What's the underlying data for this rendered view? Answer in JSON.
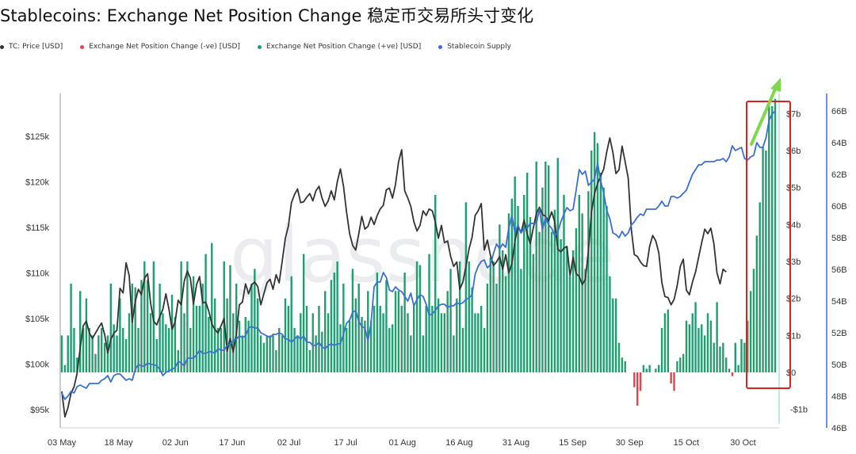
{
  "title": "Stablecoins: Exchange Net Position Change 稳定币交易所头寸变化",
  "legend": [
    {
      "label": "TC: Price [USD]",
      "color": "#333333"
    },
    {
      "label": "Exchange Net Position Change (-ve) [USD]",
      "color": "#e8414a"
    },
    {
      "label": "Exchange Net Position Change (+ve) [USD]",
      "color": "#1f9e6e"
    },
    {
      "label": "Stablecoin Supply",
      "color": "#3a6fd8"
    }
  ],
  "watermark": "glassnode",
  "colors": {
    "price": "#333333",
    "neg": "#e8414a",
    "pos": "#1f9e6e",
    "supply": "#3a6fd8",
    "highlight": "#e02020",
    "arrow": "#7cd94a"
  },
  "chart_data": {
    "type": "bar",
    "x_labels": [
      "03 May",
      "18 May",
      "02 Jun",
      "17 Jun",
      "02 Jul",
      "17 Jul",
      "01 Aug",
      "16 Aug",
      "31 Aug",
      "15 Sep",
      "30 Sep",
      "15 Oct",
      "30 Oct"
    ],
    "left_axis": {
      "ticks": [
        "$95k",
        "$100k",
        "$105k",
        "$110k",
        "$115k",
        "$120k",
        "$125k"
      ],
      "range": [
        93000,
        129500
      ]
    },
    "right_axis_1": {
      "ticks": [
        "-$1b",
        "$0",
        "$1b",
        "$2b",
        "$3b",
        "$4b",
        "$5b",
        "$6b",
        "$7b"
      ],
      "range": [
        -1.5,
        7.5
      ]
    },
    "right_axis_2": {
      "ticks": [
        "46B",
        "48B",
        "50B",
        "52B",
        "54B",
        "56B",
        "58B",
        "60B",
        "62B",
        "64B",
        "66B"
      ],
      "range": [
        46,
        67
      ]
    },
    "net_position_change_bn": [
      1.0,
      0.2,
      1.0,
      2.4,
      1.2,
      0.4,
      2.2,
      1.2,
      2.0,
      1.2,
      1.0,
      0.5,
      1.0,
      1.2,
      0.8,
      1.0,
      2.4,
      1.3,
      1.0,
      2.0,
      1.2,
      0.9,
      1.6,
      2.4,
      2.3,
      1.2,
      2.5,
      3.0,
      2.5,
      1.6,
      3.0,
      0.9,
      2.4,
      1.6,
      1.3,
      1.2,
      2.1,
      1.5,
      0.6,
      3.0,
      1.6,
      3.0,
      1.2,
      2.6,
      1.8,
      1.8,
      2.4,
      3.2,
      1.5,
      3.5,
      2.0,
      1.2,
      1.2,
      3.0,
      2.0,
      2.9,
      1.6,
      2.4,
      1.4,
      1.0,
      1.5,
      1.4,
      2.4,
      2.8,
      2.0,
      1.0,
      0.8,
      1.0,
      1.0,
      1.0,
      0.6,
      1.2,
      1.0,
      2.0,
      1.8,
      2.6,
      1.2,
      1.0,
      1.6,
      3.2,
      1.8,
      0.6,
      1.6,
      1.0,
      1.8,
      1.1,
      2.2,
      1.6,
      2.5,
      2.7,
      3.0,
      1.3,
      2.4,
      1.2,
      1.4,
      2.8,
      2.0,
      2.4,
      1.5,
      1.4,
      2.2,
      1.4,
      1.8,
      2.7,
      1.8,
      1.6,
      2.5,
      1.2,
      1.3,
      2.2,
      2.2,
      1.8,
      2.7,
      1.6,
      1.0,
      1.8,
      3.0,
      2.9,
      1.0,
      1.8,
      3.2,
      1.8,
      4.8,
      2.0,
      1.6,
      1.6,
      2.2,
      2.8,
      1.0,
      2.0,
      3.0,
      1.2,
      4.6,
      3.0,
      2.3,
      1.6,
      1.6,
      1.8,
      1.2,
      2.4,
      3.1,
      3.0,
      2.4,
      4.0,
      3.3,
      2.6,
      4.3,
      4.7,
      5.3,
      4.5,
      2.8,
      4.8,
      5.4,
      4.2,
      3.2,
      5.7,
      3.8,
      5.0,
      5.7,
      5.6,
      3.8,
      4.4,
      5.8,
      3.6,
      4.8,
      3.4,
      2.6,
      3.3,
      3.9,
      4.8,
      4.3,
      2.8,
      4.9,
      6.0,
      6.5,
      6.2,
      5.4,
      5.0,
      4.5,
      2.6,
      2.0,
      2.0,
      0.8,
      0.4,
      0.3,
      0.0,
      0.0,
      -0.4,
      -0.9,
      -0.5,
      0.2,
      0.1,
      0.2,
      0.0,
      0.1,
      0.2,
      1.2,
      1.6,
      1.7,
      -0.3,
      -0.5,
      0.3,
      0.4,
      0.5,
      1.4,
      1.3,
      1.6,
      1.9,
      1.2,
      1.3,
      1.0,
      1.6,
      1.4,
      0.8,
      1.9,
      0.7,
      0.8,
      0.4,
      0.1,
      -0.1,
      0.8,
      0.2,
      0.9,
      0.8,
      1.4,
      2.2,
      2.8,
      3.7,
      4.6,
      6.1,
      6.0,
      7.2,
      7.2,
      7.4
    ],
    "btc_price_usd": [
      97000,
      94200,
      95200,
      96800,
      97500,
      99000,
      101800,
      104200,
      104700,
      103400,
      102800,
      103400,
      104000,
      104500,
      103200,
      101200,
      102700,
      103400,
      103700,
      108300,
      107800,
      111100,
      109700,
      104600,
      106900,
      108200,
      107600,
      109400,
      109900,
      106700,
      104700,
      104300,
      105200,
      106000,
      107700,
      106000,
      103800,
      104600,
      107000,
      106500,
      109100,
      110200,
      109400,
      106600,
      108700,
      109600,
      106700,
      106800,
      105800,
      104400,
      103800,
      103400,
      104200,
      105000,
      101400,
      102800,
      101300,
      103300,
      106500,
      106800,
      108800,
      107700,
      108700,
      109000,
      108500,
      106500,
      107700,
      108900,
      109300,
      108200,
      109800,
      108900,
      111300,
      113800,
      115100,
      117700,
      118600,
      119200,
      117700,
      117800,
      118300,
      118700,
      117900,
      119000,
      119500,
      118200,
      117300,
      117900,
      119000,
      118000,
      120000,
      121400,
      119500,
      116700,
      114300,
      113000,
      112500,
      114300,
      116200,
      114800,
      115100,
      116100,
      115300,
      116300,
      117000,
      117400,
      119100,
      119300,
      118200,
      119700,
      122200,
      123500,
      119000,
      118200,
      117300,
      115600,
      114600,
      115200,
      116800,
      116300,
      117000,
      116800,
      115600,
      113800,
      115200,
      113300,
      113500,
      111800,
      110700,
      111200,
      108200,
      109000,
      110700,
      112600,
      113900,
      116300,
      116800,
      117600,
      112500,
      113600,
      111900,
      110800,
      111200,
      111800,
      110400,
      112000,
      110000,
      111000,
      113500,
      115100,
      114400,
      115800,
      114300,
      113200,
      114900,
      116500,
      117200,
      116400,
      116200,
      115700,
      116700,
      115600,
      112600,
      112300,
      112700,
      112900,
      109700,
      111700,
      109900,
      109600,
      108700,
      109300,
      112400,
      116600,
      118700,
      119800,
      120600,
      121400,
      123300,
      124800,
      123200,
      120900,
      121300,
      123900,
      122200,
      120400,
      114800,
      112000,
      111800,
      111200,
      110800,
      110700,
      112900,
      114100,
      113500,
      112200,
      108900,
      107400,
      107300,
      106500,
      107100,
      108600,
      110700,
      111500,
      108100,
      107600,
      109000,
      110100,
      111700,
      113300,
      114800,
      114300,
      114900,
      113200,
      110000,
      108800,
      110400,
      110100
    ],
    "stablecoin_supply_bn": [
      48.2,
      47.8,
      48.0,
      48.3,
      48.2,
      48.6,
      48.7,
      48.6,
      48.5,
      48.8,
      48.8,
      48.8,
      48.8,
      49.0,
      49.1,
      49.3,
      48.9,
      49.3,
      49.4,
      49.4,
      49.2,
      49.0,
      49.1,
      49.0,
      49.7,
      50.0,
      49.9,
      49.9,
      50.1,
      50.0,
      50.0,
      49.9,
      49.7,
      49.3,
      49.5,
      49.6,
      49.7,
      49.8,
      50.2,
      50.1,
      49.9,
      50.4,
      50.4,
      50.4,
      50.6,
      50.9,
      50.7,
      50.7,
      50.8,
      50.8,
      50.7,
      51.0,
      50.9,
      50.9,
      51.2,
      51.3,
      51.5,
      51.6,
      51.8,
      51.7,
      51.8,
      52.3,
      52.4,
      52.3,
      52.3,
      52.0,
      51.9,
      51.8,
      51.7,
      51.9,
      51.9,
      52.0,
      51.9,
      51.6,
      51.6,
      51.4,
      51.6,
      51.8,
      51.6,
      51.8,
      51.4,
      51.4,
      51.2,
      51.2,
      51.4,
      51.1,
      51.0,
      51.2,
      51.3,
      51.2,
      51.3,
      51.3,
      51.9,
      52.6,
      52.8,
      53.3,
      53.4,
      52.7,
      52.4,
      52.3,
      51.5,
      52.6,
      54.9,
      55.2,
      55.2,
      55.8,
      55.5,
      54.7,
      54.6,
      54.9,
      54.7,
      54.6,
      54.3,
      54.0,
      54.5,
      53.7,
      54.1,
      54.4,
      54.3,
      53.8,
      53.1,
      53.2,
      53.4,
      53.7,
      53.8,
      53.8,
      53.6,
      53.7,
      53.7,
      53.9,
      53.8,
      53.9,
      54.1,
      54.2,
      54.4,
      55.7,
      56.2,
      56.5,
      56.6,
      56.1,
      56.3,
      57.0,
      57.6,
      57.3,
      57.6,
      57.4,
      58.6,
      59.4,
      58.3,
      58.8,
      58.3,
      58.6,
      58.6,
      58.9,
      58.9,
      58.9,
      59.8,
      58.5,
      59.3,
      58.8,
      58.6,
      58.1,
      58.4,
      59.0,
      59.5,
      59.9,
      59.7,
      59.8,
      61.0,
      62.3,
      62.0,
      62.2,
      61.3,
      61.5,
      61.7,
      62.7,
      61.6,
      60.8,
      59.7,
      59.2,
      58.3,
      58.2,
      58.0,
      58.4,
      58.1,
      58.3,
      58.8,
      59.0,
      59.3,
      59.5,
      59.4,
      59.8,
      59.8,
      59.8,
      59.8,
      60.0,
      60.3,
      60.0,
      60.0,
      60.6,
      60.6,
      60.5,
      60.6,
      60.8,
      61.0,
      61.5,
      62.0,
      62.3,
      62.6,
      62.6,
      62.8,
      62.8,
      62.8,
      62.8,
      62.9,
      62.9,
      63.0,
      62.8,
      63.1,
      63.8,
      63.5,
      63.6,
      63.7,
      63.0,
      62.9,
      63.1,
      63.2,
      64.0,
      63.7,
      63.7,
      64.3,
      65.4,
      65.8,
      66.0
    ]
  }
}
